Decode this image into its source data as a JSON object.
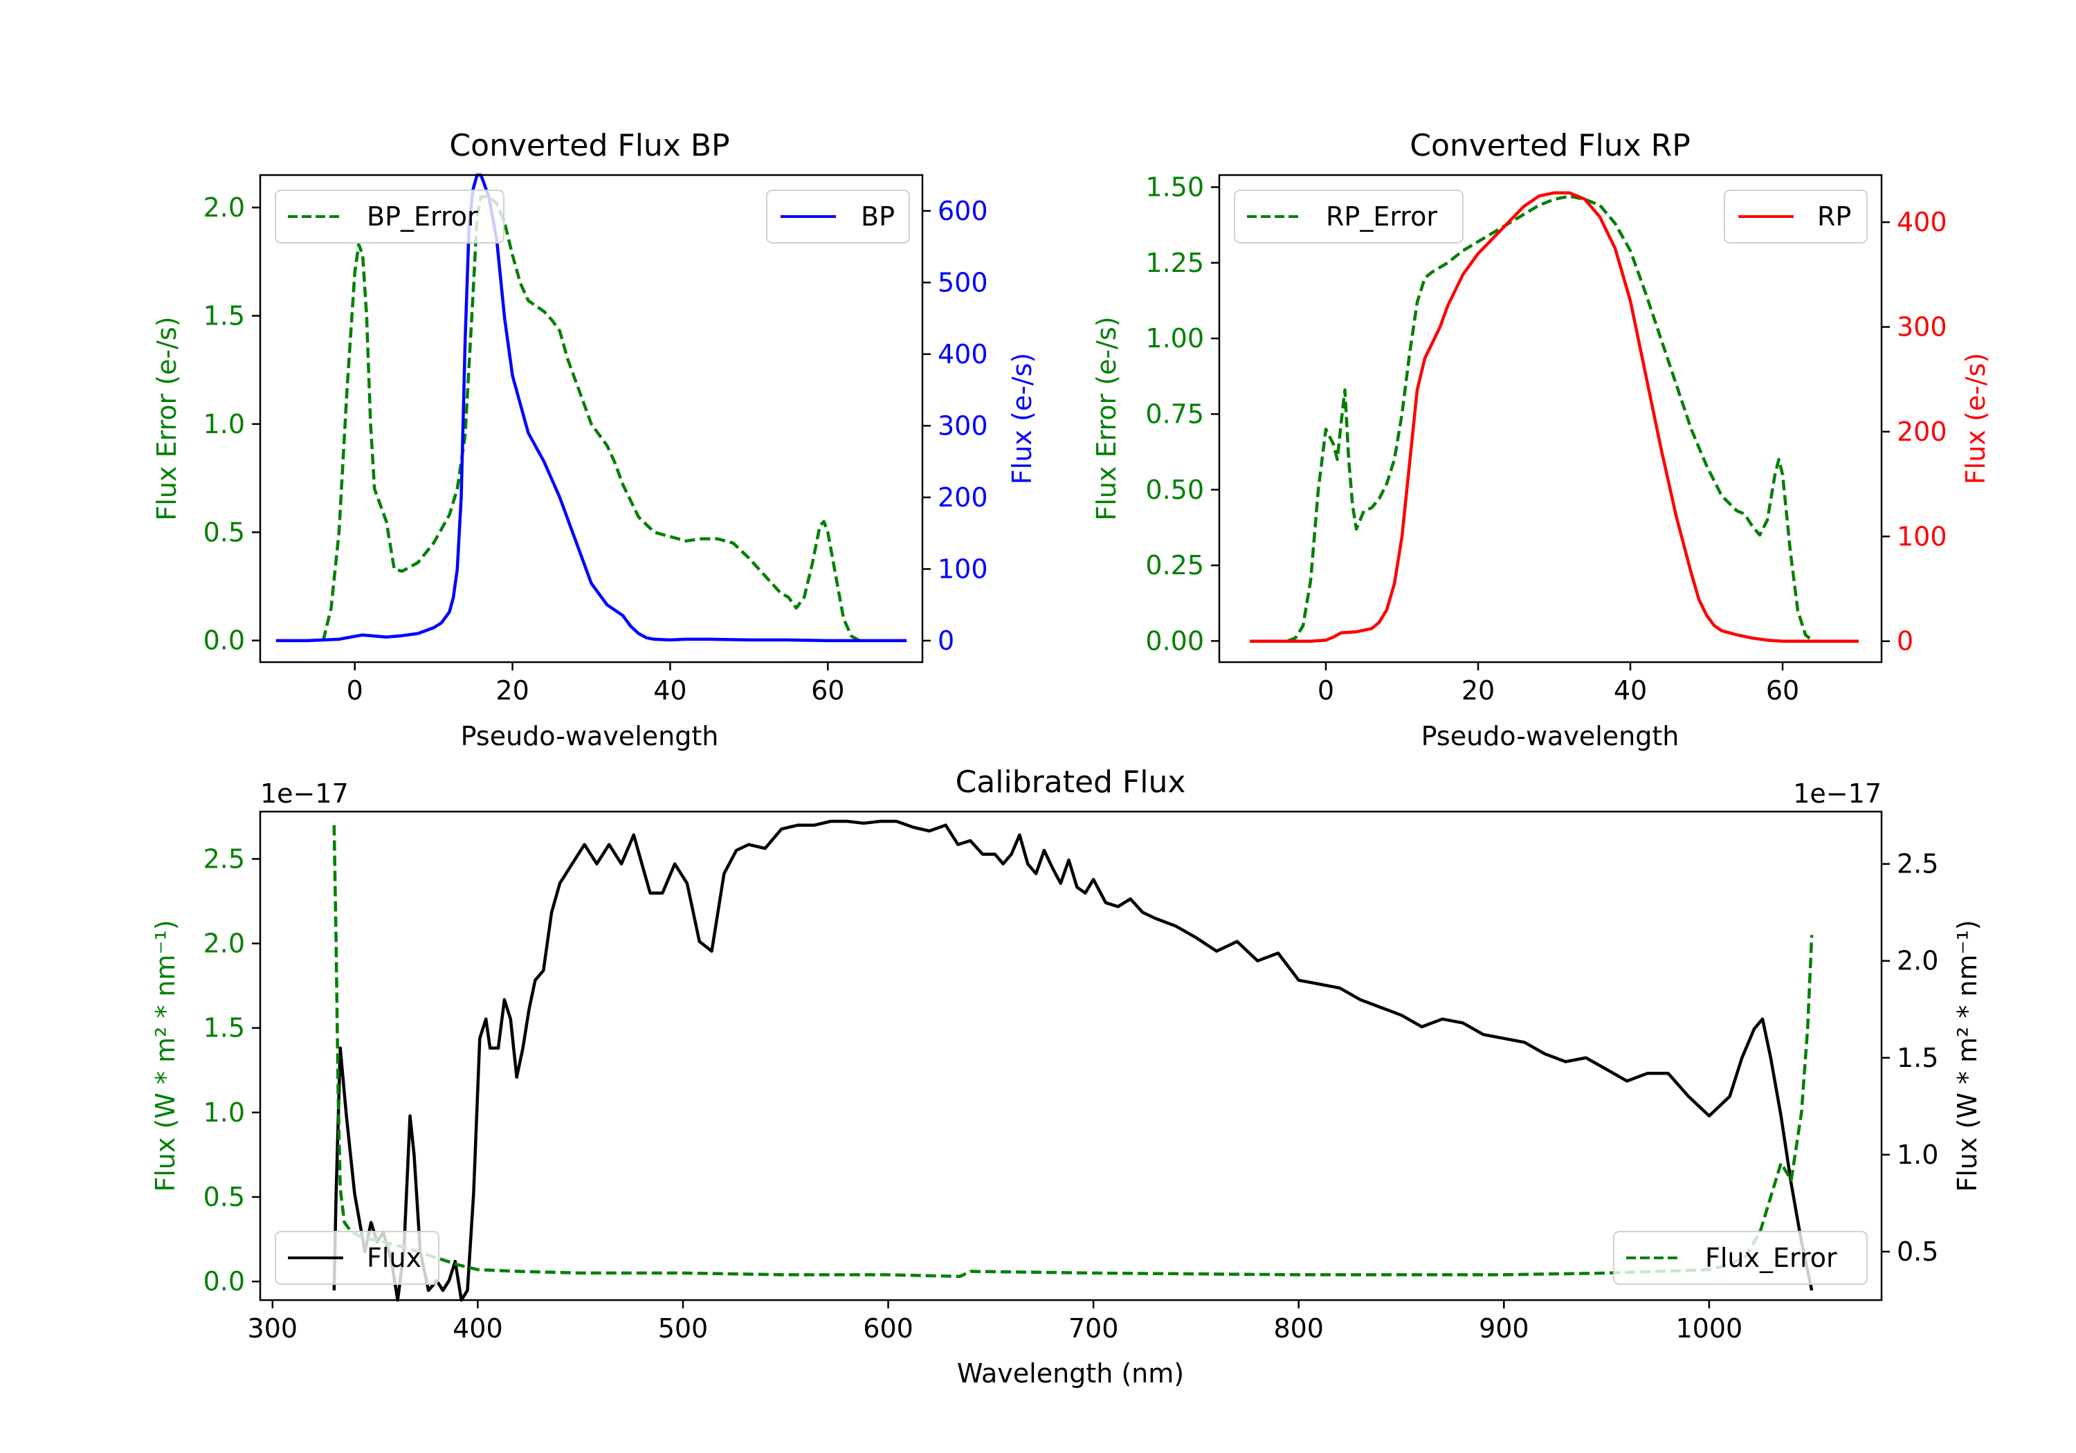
{
  "chart_data": [
    {
      "id": "bp",
      "type": "line",
      "title": "Converted Flux BP",
      "xlabel": "Pseudo-wavelength",
      "xlim": [
        -12,
        72
      ],
      "xticks": [
        "0",
        "20",
        "40",
        "60"
      ],
      "y_left": {
        "label": "Flux Error (e-/s)",
        "color": "#008000",
        "lim": [
          -0.1,
          2.15
        ],
        "ticks": [
          "0.0",
          "0.5",
          "1.0",
          "1.5",
          "2.0"
        ]
      },
      "y_right": {
        "label": "Flux (e-/s)",
        "color": "#0000ff",
        "lim": [
          -30,
          650
        ],
        "ticks": [
          "0",
          "100",
          "200",
          "300",
          "400",
          "500",
          "600"
        ]
      },
      "legend_left": "BP_Error",
      "legend_right": "BP",
      "series": [
        {
          "name": "BP_Error",
          "axis": "left",
          "style": "dashed",
          "color": "#008000",
          "x": [
            -4,
            -3,
            -2,
            -1,
            0,
            0.5,
            1,
            1.5,
            2,
            2.5,
            3,
            3.5,
            4,
            5,
            6,
            8,
            10,
            12,
            13,
            14,
            15,
            15.5,
            16,
            17,
            18,
            19,
            20,
            21,
            22,
            24,
            25,
            26,
            27,
            28,
            30,
            32,
            33,
            34,
            36,
            38,
            40,
            42,
            44,
            46,
            48,
            50,
            52,
            54,
            55,
            56,
            57,
            58,
            59,
            59.5,
            60,
            61,
            62,
            63,
            64
          ],
          "y": [
            0.0,
            0.15,
            0.5,
            1.15,
            1.7,
            1.83,
            1.78,
            1.5,
            1.0,
            0.7,
            0.65,
            0.6,
            0.55,
            0.33,
            0.32,
            0.36,
            0.45,
            0.58,
            0.7,
            0.95,
            1.6,
            1.95,
            2.05,
            2.05,
            2.02,
            1.93,
            1.78,
            1.65,
            1.57,
            1.52,
            1.48,
            1.43,
            1.3,
            1.2,
            1.0,
            0.9,
            0.82,
            0.72,
            0.57,
            0.5,
            0.48,
            0.46,
            0.47,
            0.47,
            0.45,
            0.38,
            0.3,
            0.22,
            0.2,
            0.15,
            0.2,
            0.35,
            0.53,
            0.55,
            0.5,
            0.3,
            0.1,
            0.02,
            0.0
          ]
        },
        {
          "name": "BP",
          "axis": "right",
          "style": "solid",
          "color": "#0000ff",
          "x": [
            -10,
            -6,
            -2,
            0,
            1,
            2,
            3,
            4,
            6,
            8,
            10,
            11,
            12,
            12.5,
            13,
            13.5,
            14,
            14.5,
            15,
            15.5,
            16,
            17,
            18,
            19,
            20,
            21,
            22,
            24,
            26,
            28,
            30,
            32,
            34,
            35,
            36,
            37,
            38,
            40,
            42,
            45,
            50,
            55,
            60,
            65,
            70
          ],
          "y": [
            0,
            0,
            2,
            6,
            8,
            7,
            6,
            5,
            7,
            10,
            18,
            25,
            40,
            60,
            100,
            200,
            420,
            580,
            630,
            650,
            650,
            620,
            560,
            450,
            370,
            330,
            290,
            250,
            200,
            140,
            80,
            50,
            35,
            20,
            10,
            4,
            2,
            1,
            2,
            2,
            1,
            1,
            0,
            0,
            0
          ]
        }
      ]
    },
    {
      "id": "rp",
      "type": "line",
      "title": "Converted Flux RP",
      "xlabel": "Pseudo-wavelength",
      "xlim": [
        -14,
        73
      ],
      "xticks": [
        "0",
        "20",
        "40",
        "60"
      ],
      "y_left": {
        "label": "Flux Error (e-/s)",
        "color": "#008000",
        "lim": [
          -0.07,
          1.54
        ],
        "ticks": [
          "0.00",
          "0.25",
          "0.50",
          "0.75",
          "1.00",
          "1.25",
          "1.50"
        ]
      },
      "y_right": {
        "label": "Flux (e-/s)",
        "color": "#ff0000",
        "lim": [
          -20,
          445
        ],
        "ticks": [
          "0",
          "100",
          "200",
          "300",
          "400"
        ]
      },
      "legend_left": "RP_Error",
      "legend_right": "RP",
      "series": [
        {
          "name": "RP_Error",
          "axis": "left",
          "style": "dashed",
          "color": "#008000",
          "x": [
            -5,
            -4,
            -3,
            -2,
            -1,
            0,
            1,
            1.5,
            2,
            2.5,
            3,
            3.5,
            4,
            5,
            6,
            7,
            8,
            9,
            10,
            11,
            12,
            13,
            14,
            16,
            18,
            20,
            22,
            24,
            26,
            28,
            30,
            32,
            34,
            36,
            38,
            40,
            42,
            44,
            46,
            48,
            50,
            52,
            54,
            55,
            56,
            57,
            58,
            59,
            59.5,
            60,
            61,
            62,
            63,
            64
          ],
          "y": [
            0.0,
            0.01,
            0.05,
            0.2,
            0.5,
            0.7,
            0.65,
            0.6,
            0.72,
            0.83,
            0.6,
            0.45,
            0.37,
            0.43,
            0.44,
            0.47,
            0.52,
            0.6,
            0.75,
            0.95,
            1.12,
            1.2,
            1.22,
            1.25,
            1.29,
            1.32,
            1.35,
            1.38,
            1.41,
            1.44,
            1.46,
            1.47,
            1.46,
            1.44,
            1.38,
            1.29,
            1.15,
            1.0,
            0.85,
            0.7,
            0.58,
            0.48,
            0.43,
            0.42,
            0.38,
            0.35,
            0.4,
            0.55,
            0.6,
            0.55,
            0.3,
            0.1,
            0.02,
            0.0
          ]
        },
        {
          "name": "RP",
          "axis": "right",
          "style": "solid",
          "color": "#ff0000",
          "x": [
            -10,
            -5,
            -2,
            0,
            1,
            2,
            4,
            6,
            7,
            8,
            9,
            10,
            11,
            12,
            13,
            14,
            15,
            16,
            18,
            20,
            22,
            24,
            26,
            28,
            30,
            32,
            34,
            36,
            38,
            40,
            42,
            44,
            46,
            48,
            49,
            50,
            51,
            52,
            54,
            56,
            58,
            60,
            62,
            65,
            70
          ],
          "y": [
            0,
            0,
            0,
            1,
            4,
            8,
            9,
            12,
            18,
            30,
            55,
            100,
            170,
            240,
            270,
            285,
            300,
            320,
            350,
            370,
            385,
            400,
            415,
            425,
            428,
            428,
            422,
            405,
            375,
            325,
            255,
            185,
            120,
            65,
            40,
            25,
            15,
            10,
            6,
            3,
            1,
            0,
            0,
            0,
            0
          ]
        }
      ]
    },
    {
      "id": "cal",
      "type": "line",
      "title": "Calibrated Flux",
      "xlabel": "Wavelength (nm)",
      "xlim": [
        294,
        1084
      ],
      "xticks": [
        "300",
        "400",
        "500",
        "600",
        "700",
        "800",
        "900",
        "1000"
      ],
      "y_left": {
        "label": "Flux (W * m² * nm⁻¹)",
        "color": "#008000",
        "lim": [
          -0.11,
          2.78
        ],
        "ticks": [
          "0.0",
          "0.5",
          "1.0",
          "1.5",
          "2.0",
          "2.5"
        ],
        "offset": "1e−17"
      },
      "y_right": {
        "label": "Flux (W * m² * nm⁻¹)",
        "color": "#000000",
        "lim": [
          0.25,
          2.77
        ],
        "ticks": [
          "0.5",
          "1.0",
          "1.5",
          "2.0",
          "2.5"
        ],
        "offset": "1e−17"
      },
      "legend_left": "Flux",
      "legend_right": "Flux_Error",
      "series": [
        {
          "name": "Flux",
          "axis": "right",
          "style": "solid",
          "color": "#000000",
          "x": [
            330,
            331,
            333,
            336,
            340,
            345,
            348,
            351,
            354,
            358,
            361,
            364,
            367,
            369,
            372,
            376,
            380,
            383,
            386,
            389,
            392,
            395,
            398,
            401,
            404,
            406,
            410,
            413,
            416,
            419,
            422,
            425,
            428,
            432,
            436,
            440,
            446,
            452,
            458,
            464,
            470,
            476,
            480,
            484,
            490,
            496,
            502,
            508,
            514,
            520,
            526,
            532,
            540,
            548,
            556,
            564,
            572,
            580,
            588,
            596,
            604,
            612,
            620,
            628,
            634,
            640,
            646,
            652,
            656,
            660,
            664,
            668,
            672,
            676,
            680,
            684,
            688,
            692,
            696,
            700,
            706,
            712,
            718,
            724,
            730,
            740,
            750,
            760,
            770,
            780,
            790,
            800,
            810,
            820,
            830,
            840,
            850,
            860,
            870,
            880,
            890,
            900,
            910,
            920,
            930,
            940,
            950,
            960,
            970,
            980,
            990,
            1000,
            1010,
            1016,
            1022,
            1026,
            1030,
            1035,
            1040,
            1045,
            1050
          ],
          "y": [
            0.3,
            0.8,
            1.55,
            1.2,
            0.8,
            0.5,
            0.65,
            0.55,
            0.6,
            0.45,
            0.25,
            0.5,
            1.2,
            1.0,
            0.5,
            0.3,
            0.35,
            0.3,
            0.35,
            0.45,
            0.25,
            0.3,
            0.8,
            1.6,
            1.7,
            1.55,
            1.55,
            1.8,
            1.7,
            1.4,
            1.55,
            1.75,
            1.9,
            1.95,
            2.25,
            2.4,
            2.5,
            2.6,
            2.5,
            2.6,
            2.5,
            2.65,
            2.5,
            2.35,
            2.35,
            2.5,
            2.4,
            2.1,
            2.05,
            2.45,
            2.57,
            2.6,
            2.58,
            2.68,
            2.7,
            2.7,
            2.72,
            2.72,
            2.71,
            2.72,
            2.72,
            2.69,
            2.67,
            2.7,
            2.6,
            2.62,
            2.55,
            2.55,
            2.5,
            2.55,
            2.65,
            2.5,
            2.45,
            2.57,
            2.48,
            2.4,
            2.52,
            2.38,
            2.35,
            2.42,
            2.3,
            2.28,
            2.32,
            2.25,
            2.22,
            2.18,
            2.12,
            2.05,
            2.1,
            2.0,
            2.04,
            1.9,
            1.88,
            1.86,
            1.8,
            1.76,
            1.72,
            1.66,
            1.7,
            1.68,
            1.62,
            1.6,
            1.58,
            1.52,
            1.48,
            1.5,
            1.44,
            1.38,
            1.42,
            1.42,
            1.3,
            1.2,
            1.3,
            1.5,
            1.65,
            1.7,
            1.5,
            1.2,
            0.85,
            0.55,
            0.3
          ]
        },
        {
          "name": "Flux_Error",
          "axis": "left",
          "style": "dashed",
          "color": "#008000",
          "x": [
            330,
            331,
            332,
            333,
            335,
            338,
            342,
            348,
            355,
            365,
            375,
            390,
            400,
            420,
            450,
            500,
            550,
            600,
            635,
            640,
            700,
            800,
            900,
            950,
            1000,
            1010,
            1018,
            1025,
            1030,
            1035,
            1040,
            1045,
            1048,
            1050
          ],
          "y": [
            2.7,
            2.0,
            1.1,
            0.55,
            0.35,
            0.3,
            0.27,
            0.25,
            0.23,
            0.2,
            0.16,
            0.1,
            0.07,
            0.06,
            0.05,
            0.05,
            0.04,
            0.04,
            0.03,
            0.06,
            0.05,
            0.04,
            0.04,
            0.05,
            0.07,
            0.1,
            0.15,
            0.3,
            0.5,
            0.7,
            0.6,
            1.0,
            1.5,
            2.05
          ]
        }
      ]
    }
  ]
}
